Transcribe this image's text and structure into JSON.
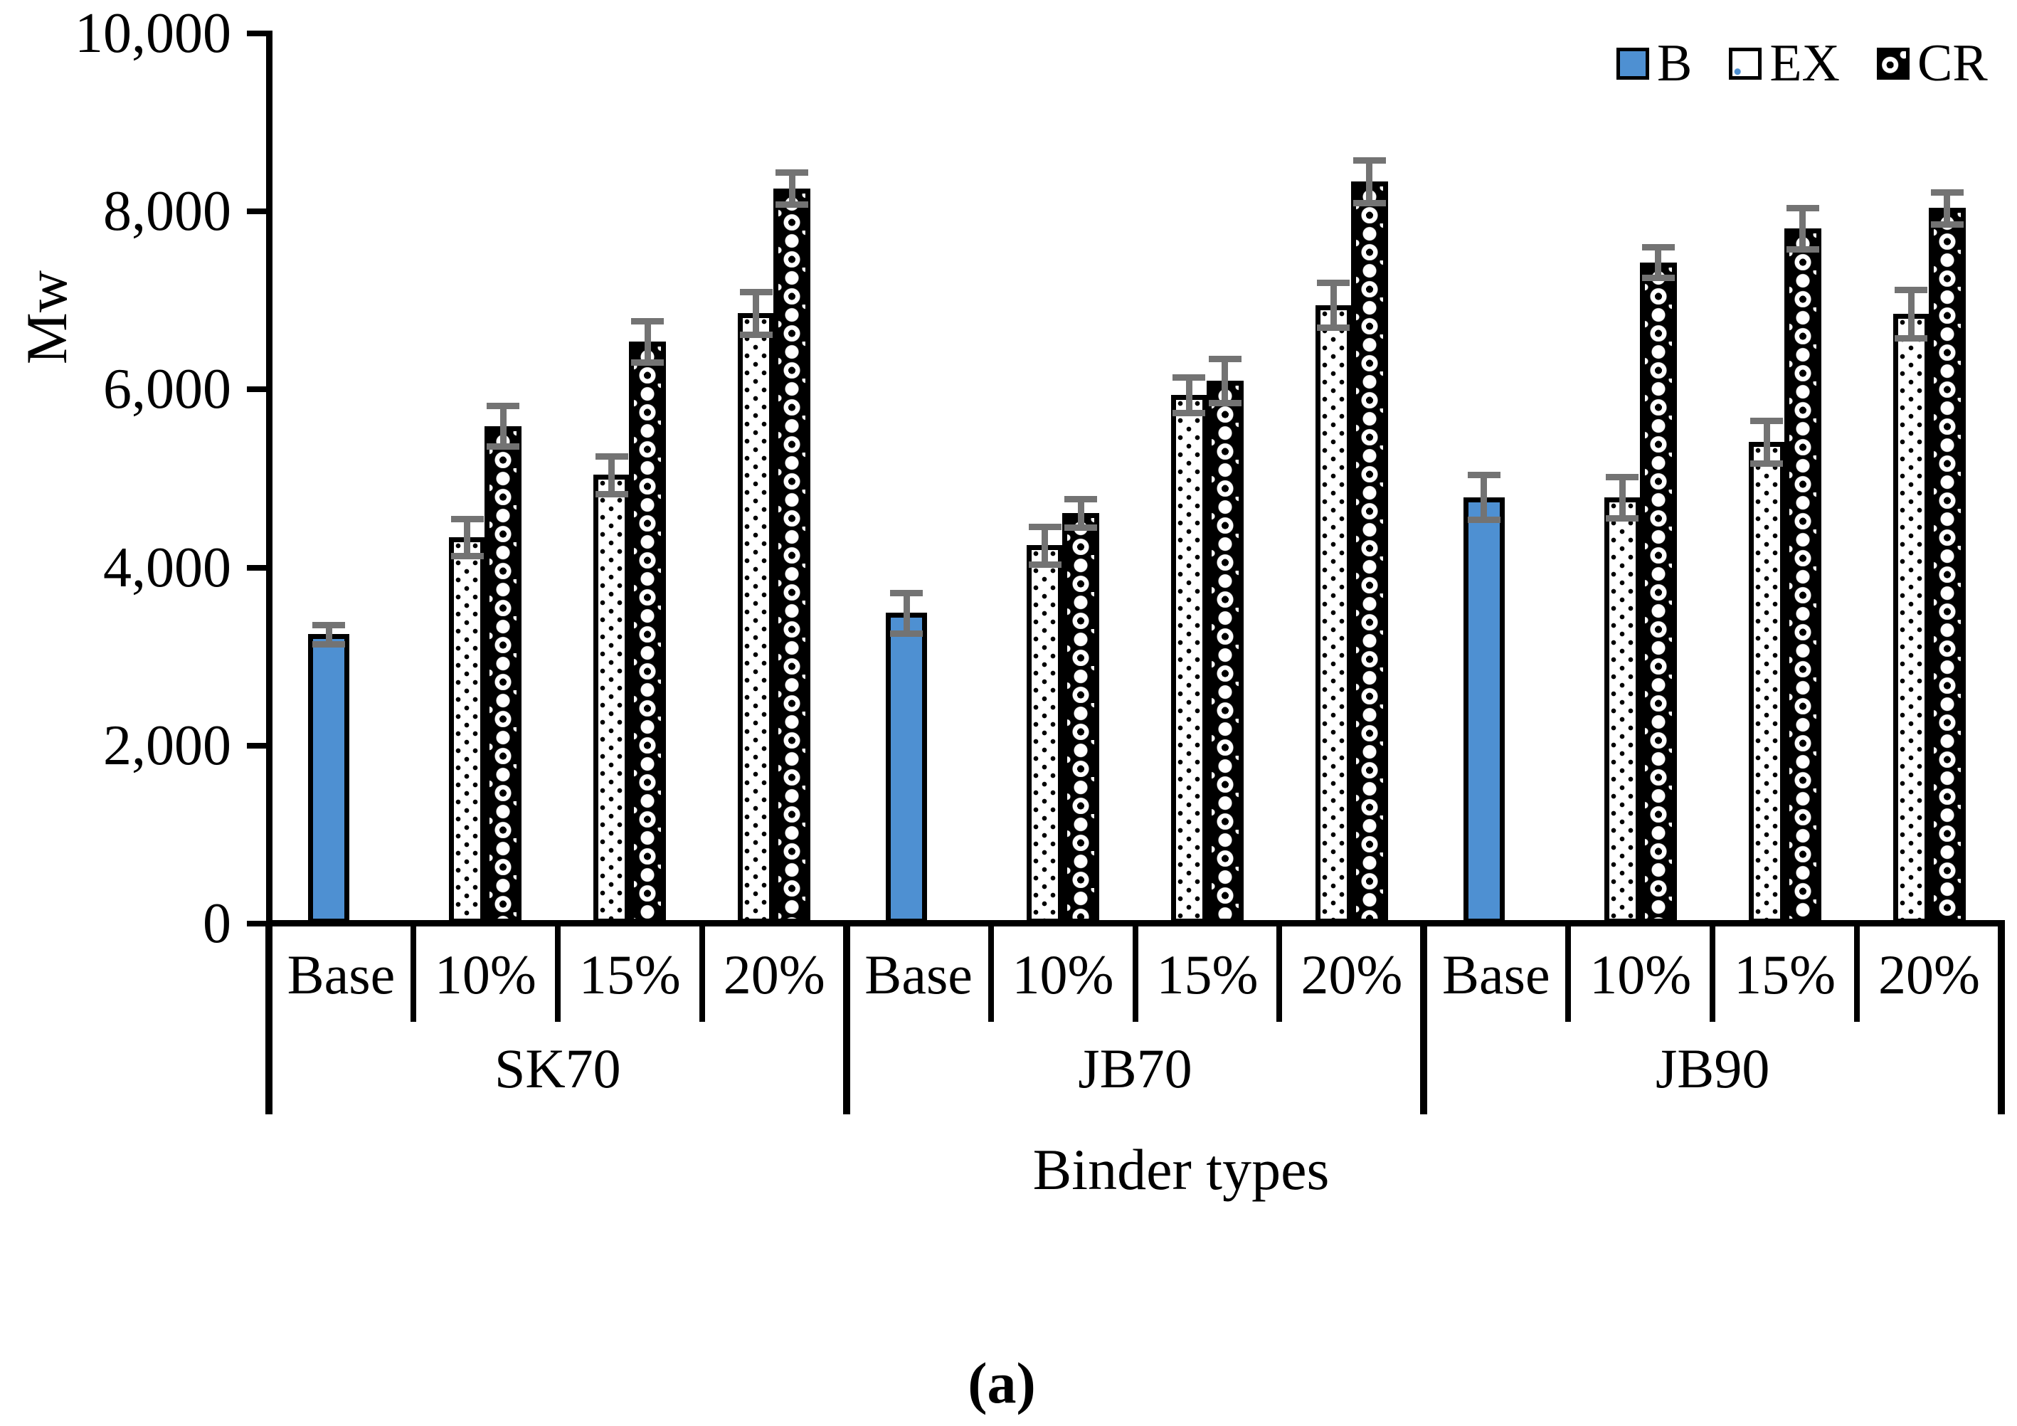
{
  "caption": "(a)",
  "colors": {
    "bar_blue": "#4e90d2",
    "error_gray": "#737373",
    "axis_black": "#000000",
    "background": "#ffffff"
  },
  "chart_data": {
    "type": "bar",
    "title": "",
    "ylabel": "Mw",
    "xlabel": "Binder types",
    "ylim": [
      0,
      10000
    ],
    "grid": false,
    "legend_position": "top-right",
    "yticks": [
      {
        "value": 0,
        "label": "0"
      },
      {
        "value": 2000,
        "label": "2,000"
      },
      {
        "value": 4000,
        "label": "4,000"
      },
      {
        "value": 6000,
        "label": "6,000"
      },
      {
        "value": 8000,
        "label": "8,000"
      },
      {
        "value": 10000,
        "label": "10,000"
      }
    ],
    "legend": [
      {
        "label": "B",
        "style": "solid-blue"
      },
      {
        "label": "EX",
        "style": "black-dots-on-white"
      },
      {
        "label": "CR",
        "style": "white-circles-on-black"
      }
    ],
    "groups": [
      {
        "label": "SK70",
        "categories": [
          "Base",
          "10%",
          "15%",
          "20%"
        ],
        "bars": [
          {
            "cat": 0,
            "series": "B",
            "value": 3250,
            "err": 110
          },
          {
            "cat": 1,
            "series": "EX",
            "value": 4340,
            "err": 210
          },
          {
            "cat": 1,
            "series": "CR",
            "value": 5590,
            "err": 230
          },
          {
            "cat": 2,
            "series": "EX",
            "value": 5040,
            "err": 210
          },
          {
            "cat": 2,
            "series": "CR",
            "value": 6540,
            "err": 230
          },
          {
            "cat": 3,
            "series": "EX",
            "value": 6860,
            "err": 240
          },
          {
            "cat": 3,
            "series": "CR",
            "value": 8260,
            "err": 180
          }
        ]
      },
      {
        "label": "JB70",
        "categories": [
          "Base",
          "10%",
          "15%",
          "20%"
        ],
        "bars": [
          {
            "cat": 0,
            "series": "B",
            "value": 3490,
            "err": 230
          },
          {
            "cat": 1,
            "series": "EX",
            "value": 4250,
            "err": 210
          },
          {
            "cat": 1,
            "series": "CR",
            "value": 4610,
            "err": 160
          },
          {
            "cat": 2,
            "series": "EX",
            "value": 5940,
            "err": 200
          },
          {
            "cat": 2,
            "series": "CR",
            "value": 6100,
            "err": 250
          },
          {
            "cat": 3,
            "series": "EX",
            "value": 6950,
            "err": 250
          },
          {
            "cat": 3,
            "series": "CR",
            "value": 8340,
            "err": 240
          }
        ]
      },
      {
        "label": "JB90",
        "categories": [
          "Base",
          "10%",
          "15%",
          "20%"
        ],
        "bars": [
          {
            "cat": 0,
            "series": "B",
            "value": 4790,
            "err": 250
          },
          {
            "cat": 1,
            "series": "EX",
            "value": 4790,
            "err": 230
          },
          {
            "cat": 1,
            "series": "CR",
            "value": 7430,
            "err": 170
          },
          {
            "cat": 2,
            "series": "EX",
            "value": 5410,
            "err": 240
          },
          {
            "cat": 2,
            "series": "CR",
            "value": 7810,
            "err": 230
          },
          {
            "cat": 3,
            "series": "EX",
            "value": 6850,
            "err": 270
          },
          {
            "cat": 3,
            "series": "CR",
            "value": 8040,
            "err": 180
          }
        ]
      }
    ]
  }
}
